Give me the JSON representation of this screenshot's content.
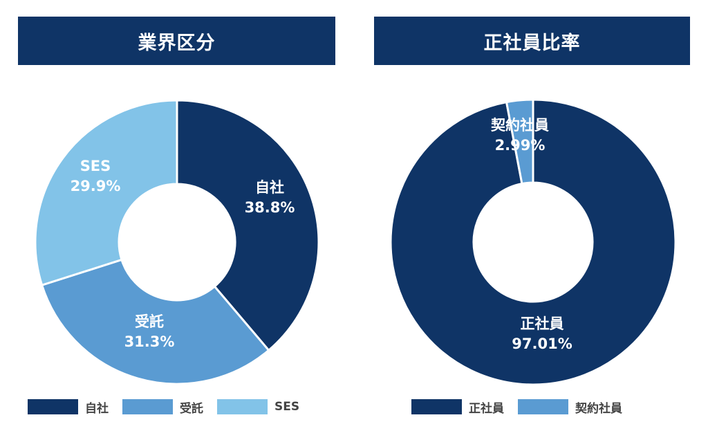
{
  "chart_data": [
    {
      "type": "pie",
      "title": "業界区分",
      "categories": [
        "自社",
        "受託",
        "SES"
      ],
      "values": [
        38.8,
        31.3,
        29.9
      ],
      "value_labels": [
        "38.8%",
        "31.3%",
        "29.9%"
      ],
      "colors": [
        "#0f3466",
        "#5a9bd2",
        "#82c3e8"
      ],
      "donut": true,
      "legend": "bottom"
    },
    {
      "type": "pie",
      "title": "正社員比率",
      "categories": [
        "正社員",
        "契約社員"
      ],
      "values": [
        97.01,
        2.99
      ],
      "value_labels": [
        "97.01%",
        "2.99%"
      ],
      "colors": [
        "#0f3466",
        "#5a9bd2"
      ],
      "donut": true,
      "legend": "bottom"
    }
  ]
}
